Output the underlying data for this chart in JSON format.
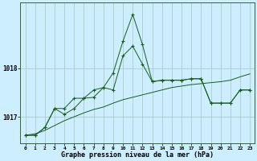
{
  "background_color": "#cceeff",
  "grid_color": "#aacccc",
  "line_color": "#1a5c1a",
  "title": "Graphe pression niveau de la mer (hPa)",
  "hours": [
    0,
    1,
    2,
    3,
    4,
    5,
    6,
    7,
    8,
    9,
    10,
    11,
    12,
    13,
    14,
    15,
    16,
    17,
    18,
    19,
    20,
    21,
    22,
    23
  ],
  "yticks": [
    1017,
    1018
  ],
  "ylim": [
    1016.45,
    1019.35
  ],
  "series_jagged": [
    1016.62,
    1016.62,
    1016.78,
    1017.17,
    1017.05,
    1017.17,
    1017.38,
    1017.4,
    1017.6,
    1017.9,
    1018.55,
    1019.1,
    1018.48,
    1017.72,
    1017.75,
    1017.75,
    1017.75,
    1017.78,
    1017.78,
    1017.28,
    1017.28,
    1017.28,
    1017.55,
    1017.55
  ],
  "series_mid": [
    1016.62,
    1016.62,
    1016.78,
    1017.17,
    1017.17,
    1017.38,
    1017.38,
    1017.55,
    1017.6,
    1017.55,
    1018.25,
    1018.45,
    1018.08,
    1017.72,
    1017.75,
    1017.75,
    1017.75,
    1017.78,
    1017.78,
    1017.28,
    1017.28,
    1017.28,
    1017.55,
    1017.55
  ],
  "series_smooth": [
    1016.62,
    1016.65,
    1016.72,
    1016.82,
    1016.92,
    1017.0,
    1017.08,
    1017.15,
    1017.2,
    1017.28,
    1017.35,
    1017.4,
    1017.45,
    1017.5,
    1017.55,
    1017.6,
    1017.63,
    1017.66,
    1017.68,
    1017.7,
    1017.72,
    1017.75,
    1017.82,
    1017.88
  ]
}
